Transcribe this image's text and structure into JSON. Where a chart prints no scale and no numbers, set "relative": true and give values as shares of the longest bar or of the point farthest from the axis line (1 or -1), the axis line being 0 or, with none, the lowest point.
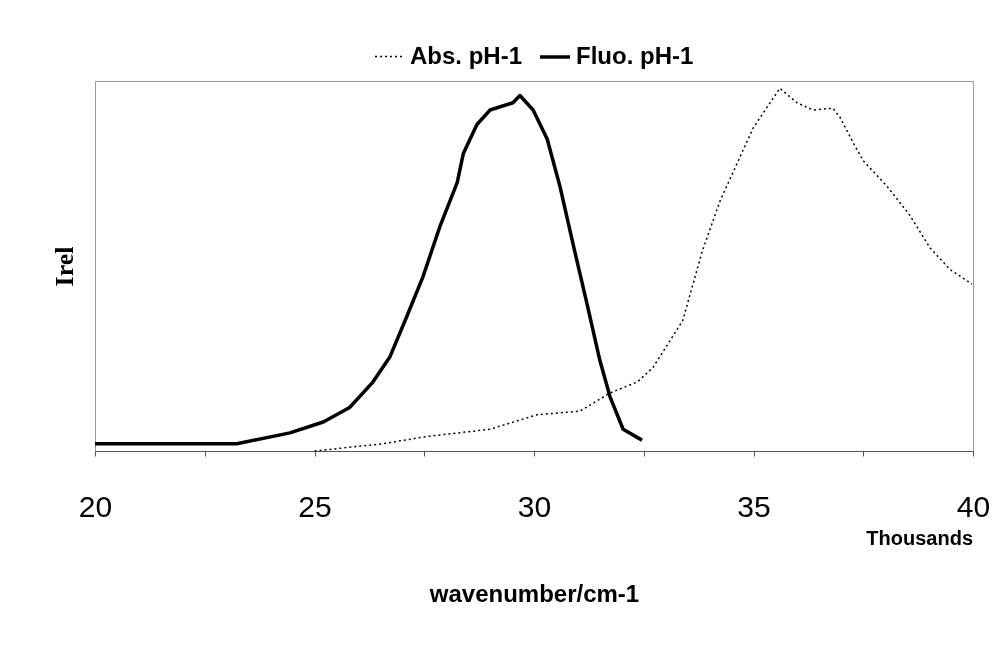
{
  "chart_data": {
    "type": "line",
    "relative": true,
    "xlabel": "wavenumber/cm-1",
    "ylabel": "Irel",
    "annotations": [
      "Thousands"
    ],
    "legend": "top",
    "xlim": [
      20,
      40
    ],
    "xticks": [
      20,
      {
        "value": 22.5,
        "label": null
      },
      25,
      {
        "value": 27.5,
        "label": null
      },
      30,
      {
        "value": 32.5,
        "label": null
      },
      35,
      {
        "value": 37.5,
        "label": null
      },
      40
    ],
    "series": [
      {
        "name": "Abs. pH-1",
        "color": "#000000",
        "line_style": "dotted",
        "x": [
          25,
          26.56,
          27.56,
          29,
          30.07,
          31.05,
          31.73,
          32.35,
          32.71,
          33.39,
          33.83,
          34.24,
          34.99,
          35.6,
          35.99,
          36.36,
          36.81,
          36.97,
          37.27,
          37.5,
          38.04,
          38.56,
          39.02,
          39.48,
          39.98
        ],
        "values": [
          0,
          0.02,
          0.04,
          0.06,
          0.1,
          0.11,
          0.16,
          0.19,
          0.23,
          0.36,
          0.55,
          0.69,
          0.89,
          1,
          0.96,
          0.94,
          0.945,
          0.92,
          0.85,
          0.8,
          0.73,
          0.65,
          0.56,
          0.5,
          0.46
        ]
      },
      {
        "name": "Fluo. pH-1",
        "color": "#000000",
        "line_style": "solid",
        "x": [
          20,
          23.23,
          24.44,
          25.2,
          25.8,
          26.33,
          26.72,
          27.1,
          27.47,
          27.86,
          28.25,
          28.39,
          28.7,
          29,
          29.52,
          29.68,
          29.98,
          30.3,
          30.59,
          30.89,
          31.2,
          31.5,
          31.73,
          32.03,
          32.46
        ],
        "values": [
          0.02,
          0.02,
          0.05,
          0.08,
          0.12,
          0.19,
          0.26,
          0.37,
          0.48,
          0.62,
          0.74,
          0.82,
          0.9,
          0.94,
          0.96,
          0.98,
          0.94,
          0.86,
          0.73,
          0.57,
          0.41,
          0.25,
          0.15,
          0.06,
          0.03
        ]
      }
    ]
  }
}
